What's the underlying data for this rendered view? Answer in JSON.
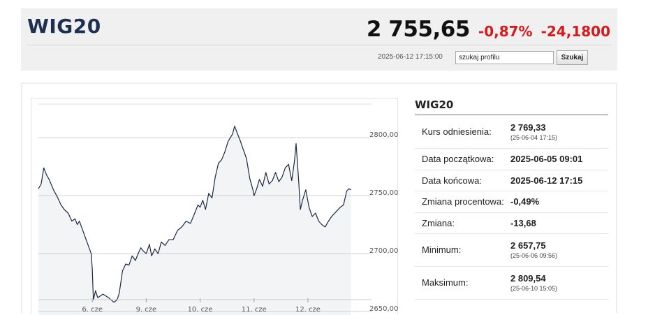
{
  "header": {
    "symbol": "WIG20",
    "price": "2 755,65",
    "change_percent": "-0,87%",
    "change_value": "-24,1800",
    "timestamp": "2025-06-12 17:15:00",
    "search_value": "szukaj profilu",
    "search_button": "Szukaj"
  },
  "colors": {
    "negative": "#d7191c",
    "symbol": "#1d3050",
    "header_bg": "#f0f0f0",
    "line": "#1a2a44",
    "area_fill": "#f3f4f6"
  },
  "info": {
    "title": "WIG20",
    "rows": [
      {
        "label": "Kurs odniesienia:",
        "value": "2 769,33",
        "sub": "(25-06-04 17:15)"
      },
      {
        "label": "Data początkowa:",
        "value": "2025-06-05 09:01"
      },
      {
        "label": "Data końcowa:",
        "value": "2025-06-12 17:15"
      },
      {
        "label": "Zmiana procentowa:",
        "value": "-0,49%"
      },
      {
        "label": "Zmiana:",
        "value": "-13,68"
      },
      {
        "label": "Minimum:",
        "value": "2 657,75",
        "sub": "(25-06-06 09:56)"
      },
      {
        "label": "Maksimum:",
        "value": "2 809,54",
        "sub": "(25-06-10 15:05)"
      }
    ]
  },
  "chart_data": {
    "type": "area",
    "x_unit": "trading day index (0 = 2025-06-05 open)",
    "ylim": [
      2650,
      2820
    ],
    "xlim": [
      0,
      6.05
    ],
    "y_ticks": [
      {
        "value": 2800,
        "label": "2800,00"
      },
      {
        "value": 2750,
        "label": "2750,00"
      },
      {
        "value": 2700,
        "label": "2700,00"
      },
      {
        "value": 2650,
        "label": "2650,00"
      }
    ],
    "x_ticks": [
      {
        "value": 1.0,
        "label": "6. cze"
      },
      {
        "value": 2.0,
        "label": "9. cze"
      },
      {
        "value": 3.0,
        "label": "10. cze"
      },
      {
        "value": 4.0,
        "label": "11. cze"
      },
      {
        "value": 5.0,
        "label": "12. cze"
      }
    ],
    "grid": true,
    "legend": "none",
    "series": [
      {
        "values": [
          [
            0.0,
            2756
          ],
          [
            0.05,
            2760
          ],
          [
            0.1,
            2774
          ],
          [
            0.15,
            2768
          ],
          [
            0.2,
            2764
          ],
          [
            0.28,
            2755
          ],
          [
            0.35,
            2749
          ],
          [
            0.42,
            2742
          ],
          [
            0.48,
            2738
          ],
          [
            0.55,
            2735
          ],
          [
            0.62,
            2728
          ],
          [
            0.68,
            2730
          ],
          [
            0.72,
            2725
          ],
          [
            0.76,
            2728
          ],
          [
            0.98,
            2700
          ],
          [
            1.0,
            2686
          ],
          [
            1.02,
            2660
          ],
          [
            1.06,
            2668
          ],
          [
            1.1,
            2662
          ],
          [
            1.2,
            2665
          ],
          [
            1.3,
            2662
          ],
          [
            1.4,
            2658
          ],
          [
            1.46,
            2660
          ],
          [
            1.5,
            2666
          ],
          [
            1.56,
            2685
          ],
          [
            1.62,
            2691
          ],
          [
            1.68,
            2690
          ],
          [
            1.74,
            2698
          ],
          [
            1.8,
            2694
          ],
          [
            1.85,
            2700
          ],
          [
            1.9,
            2705
          ],
          [
            1.95,
            2702
          ],
          [
            2.0,
            2700
          ],
          [
            2.06,
            2708
          ],
          [
            2.1,
            2698
          ],
          [
            2.16,
            2704
          ],
          [
            2.22,
            2700
          ],
          [
            2.28,
            2710
          ],
          [
            2.35,
            2707
          ],
          [
            2.42,
            2712
          ],
          [
            2.5,
            2712
          ],
          [
            2.58,
            2720
          ],
          [
            2.66,
            2723
          ],
          [
            2.74,
            2728
          ],
          [
            2.82,
            2726
          ],
          [
            2.9,
            2735
          ],
          [
            2.96,
            2742
          ],
          [
            3.0,
            2740
          ],
          [
            3.05,
            2746
          ],
          [
            3.1,
            2738
          ],
          [
            3.16,
            2752
          ],
          [
            3.22,
            2748
          ],
          [
            3.28,
            2766
          ],
          [
            3.34,
            2778
          ],
          [
            3.4,
            2781
          ],
          [
            3.46,
            2788
          ],
          [
            3.52,
            2797
          ],
          [
            3.56,
            2800
          ],
          [
            3.6,
            2803
          ],
          [
            3.64,
            2810
          ],
          [
            3.68,
            2805
          ],
          [
            3.74,
            2798
          ],
          [
            3.8,
            2790
          ],
          [
            3.86,
            2782
          ],
          [
            3.92,
            2765
          ],
          [
            3.98,
            2755
          ],
          [
            4.0,
            2750
          ],
          [
            4.05,
            2756
          ],
          [
            4.1,
            2764
          ],
          [
            4.16,
            2758
          ],
          [
            4.22,
            2770
          ],
          [
            4.28,
            2760
          ],
          [
            4.34,
            2763
          ],
          [
            4.4,
            2770
          ],
          [
            4.46,
            2762
          ],
          [
            4.52,
            2766
          ],
          [
            4.58,
            2774
          ],
          [
            4.64,
            2777
          ],
          [
            4.7,
            2763
          ],
          [
            4.75,
            2780
          ],
          [
            4.78,
            2795
          ],
          [
            4.8,
            2782
          ],
          [
            4.83,
            2762
          ],
          [
            4.86,
            2738
          ],
          [
            4.9,
            2746
          ],
          [
            4.96,
            2755
          ],
          [
            5.02,
            2740
          ],
          [
            5.08,
            2732
          ],
          [
            5.14,
            2735
          ],
          [
            5.2,
            2728
          ],
          [
            5.26,
            2725
          ],
          [
            5.32,
            2723
          ],
          [
            5.38,
            2728
          ],
          [
            5.44,
            2732
          ],
          [
            5.52,
            2736
          ],
          [
            5.6,
            2740
          ],
          [
            5.66,
            2742
          ],
          [
            5.72,
            2754
          ],
          [
            5.76,
            2756
          ],
          [
            5.8,
            2755
          ]
        ]
      }
    ]
  }
}
